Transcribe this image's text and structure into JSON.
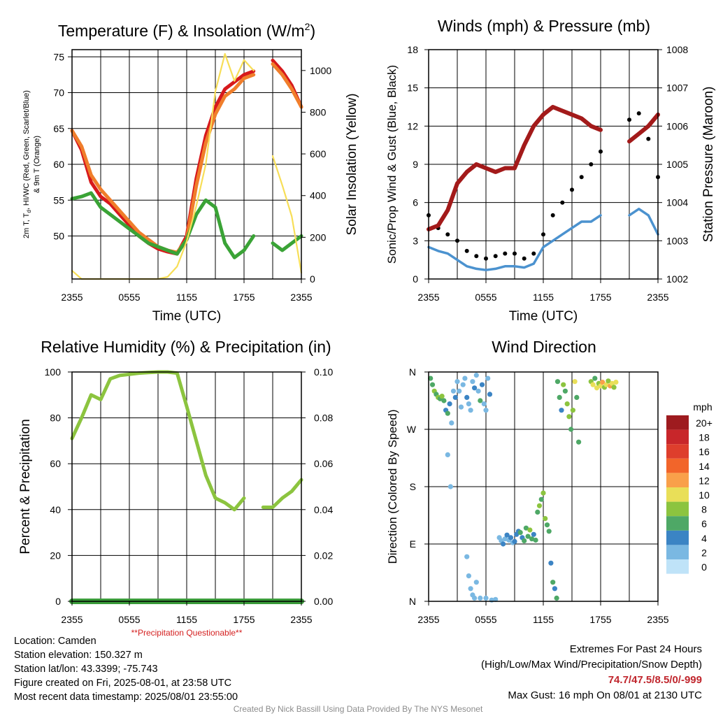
{
  "colors": {
    "air_temp": "#d7191c",
    "temp_9m": "#f07e2b",
    "dewpoint": "#3aa336",
    "windchill": "#c21f28",
    "solar": "#f7de57",
    "wind_speed": "#4b92cf",
    "wind_gust": "#000000",
    "pressure": "#a31a1a",
    "humidity": "#8cc43f",
    "precip": "#3a9b3a",
    "questionable": "#d42020",
    "extremes": "#c0262d"
  },
  "chart_data": [
    {
      "id": "temperature",
      "type": "line",
      "title_main": "Temperature (F) & Insolation (W/m",
      "title_sup": "2",
      "title_end": ")",
      "xlabel": "Time (UTC)",
      "ylabel_line1": "2m T, T",
      "ylabel_sub": "d",
      "ylabel_line1b": ", HI/WC (Red, Green, Scarlet/Blue)",
      "ylabel_line2": "& 9m T (Orange)",
      "ylabel_right": "Solar Insolation (Yellow)",
      "x_ticks": [
        "2355",
        "0555",
        "1155",
        "1755",
        "2355"
      ],
      "ylim": [
        44,
        76
      ],
      "y_ticks": [
        50,
        55,
        60,
        65,
        70,
        75
      ],
      "y2lim": [
        0,
        1100
      ],
      "y2_ticks": [
        0,
        200,
        400,
        600,
        800,
        1000
      ],
      "x_hours": [
        0,
        1,
        2,
        3,
        4,
        5,
        6,
        7,
        8,
        9,
        10,
        11,
        12,
        13,
        14,
        15,
        16,
        17,
        18,
        19,
        20,
        21,
        22,
        23,
        24
      ],
      "series": [
        {
          "key": "air_temp",
          "values": [
            64.7,
            62,
            57.5,
            55.5,
            54.5,
            53,
            51.5,
            50,
            49,
            48.2,
            47.8,
            47.5,
            50,
            58,
            64,
            68,
            70.5,
            71.5,
            72.5,
            73,
            null,
            74.5,
            73,
            71,
            68
          ]
        },
        {
          "key": "temp_9m",
          "values": [
            64.7,
            62.5,
            58.5,
            56.5,
            55,
            53.5,
            52,
            50.5,
            49.5,
            48.5,
            48,
            47.7,
            49.5,
            57,
            63,
            67,
            69.5,
            70.5,
            72,
            72.5,
            null,
            74,
            72.5,
            70.5,
            68
          ]
        },
        {
          "key": "dewpoint",
          "values": [
            55.2,
            55.5,
            56,
            54,
            53,
            52,
            51,
            50,
            49,
            48.5,
            48,
            47.5,
            49.5,
            53,
            55,
            54,
            49,
            47,
            48,
            50,
            null,
            49,
            48,
            49,
            50
          ]
        },
        {
          "key": "solar",
          "values": [
            40,
            0,
            0,
            0,
            0,
            0,
            0,
            0,
            0,
            0,
            10,
            60,
            180,
            350,
            550,
            900,
            1080,
            950,
            1050,
            1000,
            null,
            590,
            450,
            300,
            30
          ]
        }
      ]
    },
    {
      "id": "winds",
      "type": "line",
      "title": "Winds (mph) & Pressure (mb)",
      "xlabel": "Time (UTC)",
      "ylabel": "Sonic/Prop Wind & Gust (Blue, Black)",
      "ylabel_right": "Station Pressure (Maroon)",
      "x_ticks": [
        "2355",
        "0555",
        "1155",
        "1755",
        "2355"
      ],
      "ylim": [
        0,
        18
      ],
      "y_ticks": [
        0,
        3,
        6,
        9,
        12,
        15,
        18
      ],
      "y2lim": [
        1002,
        1008
      ],
      "y2_ticks": [
        1002,
        1003,
        1004,
        1005,
        1006,
        1007,
        1008
      ],
      "x_hours": [
        0,
        1,
        2,
        3,
        4,
        5,
        6,
        7,
        8,
        9,
        10,
        11,
        12,
        13,
        14,
        15,
        16,
        17,
        18,
        19,
        20,
        21,
        22,
        23,
        24
      ],
      "series": [
        {
          "key": "wind_speed",
          "values": [
            2.5,
            2.2,
            2,
            1.5,
            1,
            0.8,
            0.7,
            0.8,
            1,
            1,
            0.9,
            1.2,
            2.5,
            3,
            3.5,
            4,
            4.5,
            4.5,
            5,
            null,
            null,
            5,
            5.5,
            5,
            3.5
          ]
        },
        {
          "key": "wind_gust",
          "values": [
            5,
            4,
            3.5,
            3,
            2.2,
            1.8,
            1.6,
            1.8,
            2,
            2,
            1.6,
            2,
            3.5,
            5,
            6,
            7,
            8,
            9,
            10,
            null,
            null,
            12.5,
            13,
            11,
            8
          ]
        },
        {
          "key": "pressure",
          "values": [
            1003.3,
            1003.4,
            1003.8,
            1004.5,
            1004.8,
            1005,
            1004.9,
            1004.8,
            1004.9,
            1004.9,
            1005.5,
            1006,
            1006.3,
            1006.5,
            1006.4,
            1006.3,
            1006.2,
            1006,
            1005.9,
            null,
            null,
            1005.6,
            1005.8,
            1006,
            1006.3
          ]
        }
      ]
    },
    {
      "id": "humidity",
      "type": "line",
      "title": "Relative Humidity (%) & Precipitation (in)",
      "ylabel": "Percent & Precipitation",
      "x_ticks": [
        "2355",
        "0555",
        "1155",
        "1755",
        "2355"
      ],
      "ylim": [
        0,
        100
      ],
      "y_ticks": [
        0,
        20,
        40,
        60,
        80,
        100
      ],
      "y2lim": [
        0,
        0.1
      ],
      "y2_ticks": [
        "0.00",
        "0.02",
        "0.04",
        "0.06",
        "0.08",
        "0.10"
      ],
      "note": "**Precipitation Questionable**",
      "x_hours": [
        0,
        1,
        2,
        3,
        4,
        5,
        6,
        7,
        8,
        9,
        10,
        11,
        12,
        13,
        14,
        15,
        16,
        17,
        18,
        19,
        20,
        21,
        22,
        23,
        24
      ],
      "series": [
        {
          "key": "humidity",
          "values": [
            71,
            80,
            90,
            88,
            97,
            98.5,
            99,
            99.5,
            99.8,
            100,
            100,
            99.5,
            85,
            70,
            55,
            45,
            43,
            40,
            45,
            null,
            41,
            41,
            45,
            48,
            53
          ]
        },
        {
          "key": "precip",
          "values": [
            0,
            0,
            0,
            0,
            0,
            0,
            0,
            0,
            0,
            0,
            0,
            0,
            0,
            0,
            0,
            0,
            0,
            0,
            0,
            0,
            0,
            0,
            0,
            0,
            0
          ]
        }
      ]
    },
    {
      "id": "direction",
      "type": "scatter",
      "title": "Wind Direction",
      "ylabel": "Direction (Colored By Speed)",
      "x_ticks": [
        "2355",
        "0555",
        "1155",
        "1755",
        "2355"
      ],
      "y_ticks": [
        "N",
        "E",
        "S",
        "W",
        "N"
      ],
      "ylim": [
        0,
        360
      ],
      "legend_title": "mph",
      "legend_labels": [
        "20+",
        "18",
        "16",
        "14",
        "12",
        "10",
        "8",
        "6",
        "4",
        "2",
        "0"
      ],
      "legend_colors": [
        "#9e1b1f",
        "#c8262a",
        "#de3e2c",
        "#f2652a",
        "#f9a04a",
        "#e9df58",
        "#8cc43f",
        "#4ea866",
        "#3b84c4",
        "#7ab8e2",
        "#bfe3f8"
      ],
      "points": [
        [
          0.2,
          350,
          3
        ],
        [
          0.4,
          340,
          3
        ],
        [
          0.6,
          330,
          4
        ],
        [
          0.8,
          325,
          3
        ],
        [
          1.0,
          320,
          4
        ],
        [
          1.2,
          318,
          3
        ],
        [
          1.4,
          322,
          4
        ],
        [
          1.6,
          315,
          3
        ],
        [
          1.8,
          300,
          2
        ],
        [
          2.0,
          295,
          3
        ],
        [
          2.2,
          310,
          2
        ],
        [
          2.4,
          280,
          1
        ],
        [
          2.6,
          330,
          1
        ],
        [
          2.8,
          320,
          2
        ],
        [
          3.0,
          345,
          1
        ],
        [
          3.2,
          330,
          1
        ],
        [
          3.4,
          305,
          1
        ],
        [
          3.6,
          340,
          1
        ],
        [
          3.8,
          350,
          1
        ],
        [
          4.0,
          320,
          2
        ],
        [
          4.2,
          310,
          1
        ],
        [
          4.4,
          300,
          1
        ],
        [
          4.6,
          345,
          1
        ],
        [
          4.8,
          335,
          2
        ],
        [
          5.0,
          355,
          1
        ],
        [
          5.2,
          330,
          1
        ],
        [
          5.4,
          315,
          3
        ],
        [
          5.6,
          340,
          2
        ],
        [
          5.8,
          310,
          1
        ],
        [
          6.0,
          300,
          1
        ],
        [
          6.2,
          350,
          1
        ],
        [
          6.4,
          325,
          2
        ],
        [
          2.0,
          230,
          1
        ],
        [
          2.3,
          180,
          1
        ],
        [
          4.0,
          70,
          1
        ],
        [
          4.2,
          40,
          1
        ],
        [
          4.4,
          20,
          1
        ],
        [
          4.6,
          10,
          1
        ],
        [
          4.8,
          5,
          1
        ],
        [
          5.0,
          30,
          1
        ],
        [
          5.4,
          5,
          1
        ],
        [
          6.0,
          5,
          1
        ],
        [
          6.6,
          2,
          1
        ],
        [
          7.0,
          3,
          1
        ],
        [
          7.4,
          100,
          1
        ],
        [
          7.6,
          95,
          1
        ],
        [
          7.8,
          90,
          2
        ],
        [
          8.0,
          98,
          1
        ],
        [
          8.2,
          104,
          2
        ],
        [
          8.4,
          96,
          1
        ],
        [
          8.6,
          100,
          2
        ],
        [
          8.8,
          92,
          1
        ],
        [
          9.0,
          94,
          2
        ],
        [
          9.2,
          105,
          2
        ],
        [
          9.4,
          110,
          2
        ],
        [
          9.6,
          108,
          3
        ],
        [
          9.8,
          100,
          2
        ],
        [
          10.0,
          95,
          3
        ],
        [
          10.2,
          115,
          3
        ],
        [
          10.4,
          102,
          3
        ],
        [
          10.6,
          112,
          4
        ],
        [
          10.8,
          98,
          3
        ],
        [
          11.0,
          105,
          2
        ],
        [
          11.2,
          96,
          3
        ],
        [
          11.4,
          140,
          3
        ],
        [
          11.6,
          150,
          4
        ],
        [
          11.8,
          160,
          3
        ],
        [
          12.0,
          170,
          4
        ],
        [
          12.2,
          130,
          4
        ],
        [
          12.4,
          120,
          3
        ],
        [
          12.6,
          110,
          3
        ],
        [
          12.8,
          60,
          2
        ],
        [
          13.0,
          30,
          3
        ],
        [
          13.2,
          20,
          2
        ],
        [
          13.4,
          5,
          3
        ],
        [
          13.5,
          345,
          3
        ],
        [
          13.7,
          320,
          3
        ],
        [
          13.9,
          300,
          2
        ],
        [
          14.1,
          340,
          4
        ],
        [
          14.3,
          330,
          3
        ],
        [
          14.5,
          310,
          4
        ],
        [
          14.7,
          290,
          4
        ],
        [
          14.9,
          270,
          3
        ],
        [
          15.1,
          300,
          4
        ],
        [
          15.3,
          345,
          5
        ],
        [
          15.5,
          320,
          3
        ],
        [
          15.7,
          250,
          3
        ],
        [
          17.0,
          345,
          4
        ],
        [
          17.2,
          340,
          5
        ],
        [
          17.4,
          350,
          3
        ],
        [
          17.6,
          335,
          5
        ],
        [
          17.8,
          342,
          4
        ],
        [
          18.0,
          338,
          5
        ],
        [
          18.2,
          344,
          6
        ],
        [
          18.4,
          336,
          4
        ],
        [
          18.6,
          340,
          5
        ],
        [
          18.8,
          346,
          4
        ],
        [
          19.0,
          338,
          6
        ],
        [
          19.2,
          342,
          5
        ],
        [
          19.4,
          336,
          4
        ],
        [
          19.6,
          344,
          5
        ]
      ]
    }
  ],
  "info_left": {
    "location": "Location: Camden",
    "elevation": "Station elevation: 150.327 m",
    "latlon": "Station lat/lon: 43.3399; -75.743",
    "created": "Figure created on Fri, 2025-08-01, at 23:58 UTC",
    "recent": "Most recent data timestamp: 2025/08/01 23:55:00"
  },
  "info_right": {
    "title": "Extremes For Past 24 Hours",
    "subtitle": "(High/Low/Max Wind/Precipitation/Snow Depth)",
    "values": "74.7/47.5/8.5/0/-999",
    "max_gust": "Max Gust: 16 mph On 08/01 at 2130 UTC"
  },
  "credit": "Created By Nick Bassill Using Data Provided By The NYS Mesonet"
}
